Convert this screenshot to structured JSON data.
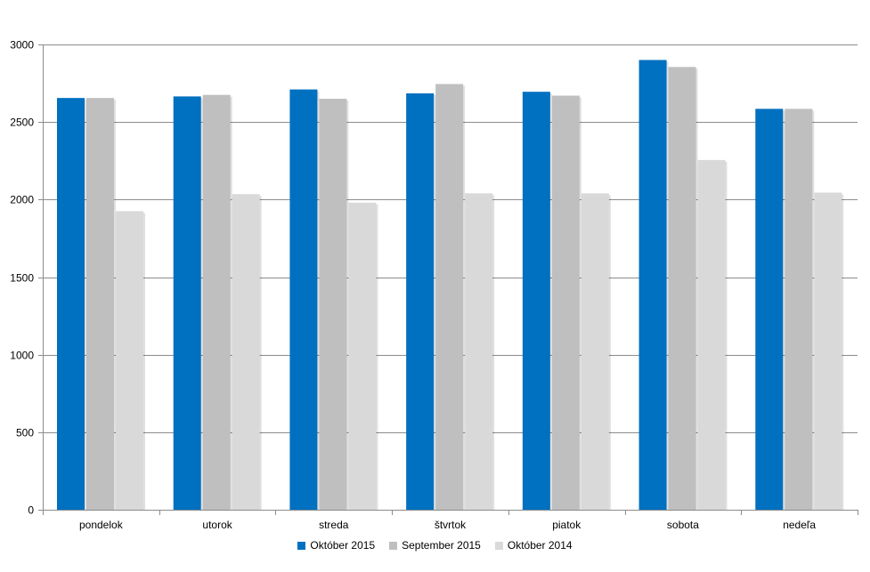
{
  "chart_data": {
    "type": "bar",
    "categories": [
      "pondelok",
      "utorok",
      "streda",
      "štvrtok",
      "piatok",
      "sobota",
      "nedeľa"
    ],
    "series": [
      {
        "name": "Október 2015",
        "color": "#0070c0",
        "values": [
          2655,
          2665,
          2710,
          2685,
          2695,
          2900,
          2585
        ]
      },
      {
        "name": "September 2015",
        "color": "#bfbfbf",
        "values": [
          2655,
          2675,
          2650,
          2745,
          2670,
          2855,
          2585
        ]
      },
      {
        "name": "Október 2014",
        "color": "#d9d9d9",
        "values": [
          1925,
          2035,
          1980,
          2040,
          2040,
          2255,
          2045
        ]
      }
    ],
    "yticks": [
      0,
      500,
      1000,
      1500,
      2000,
      2500,
      3000
    ],
    "ylim": [
      0,
      3000
    ],
    "grid": true,
    "legend_position": "bottom",
    "title": "",
    "xlabel": "",
    "ylabel": ""
  }
}
